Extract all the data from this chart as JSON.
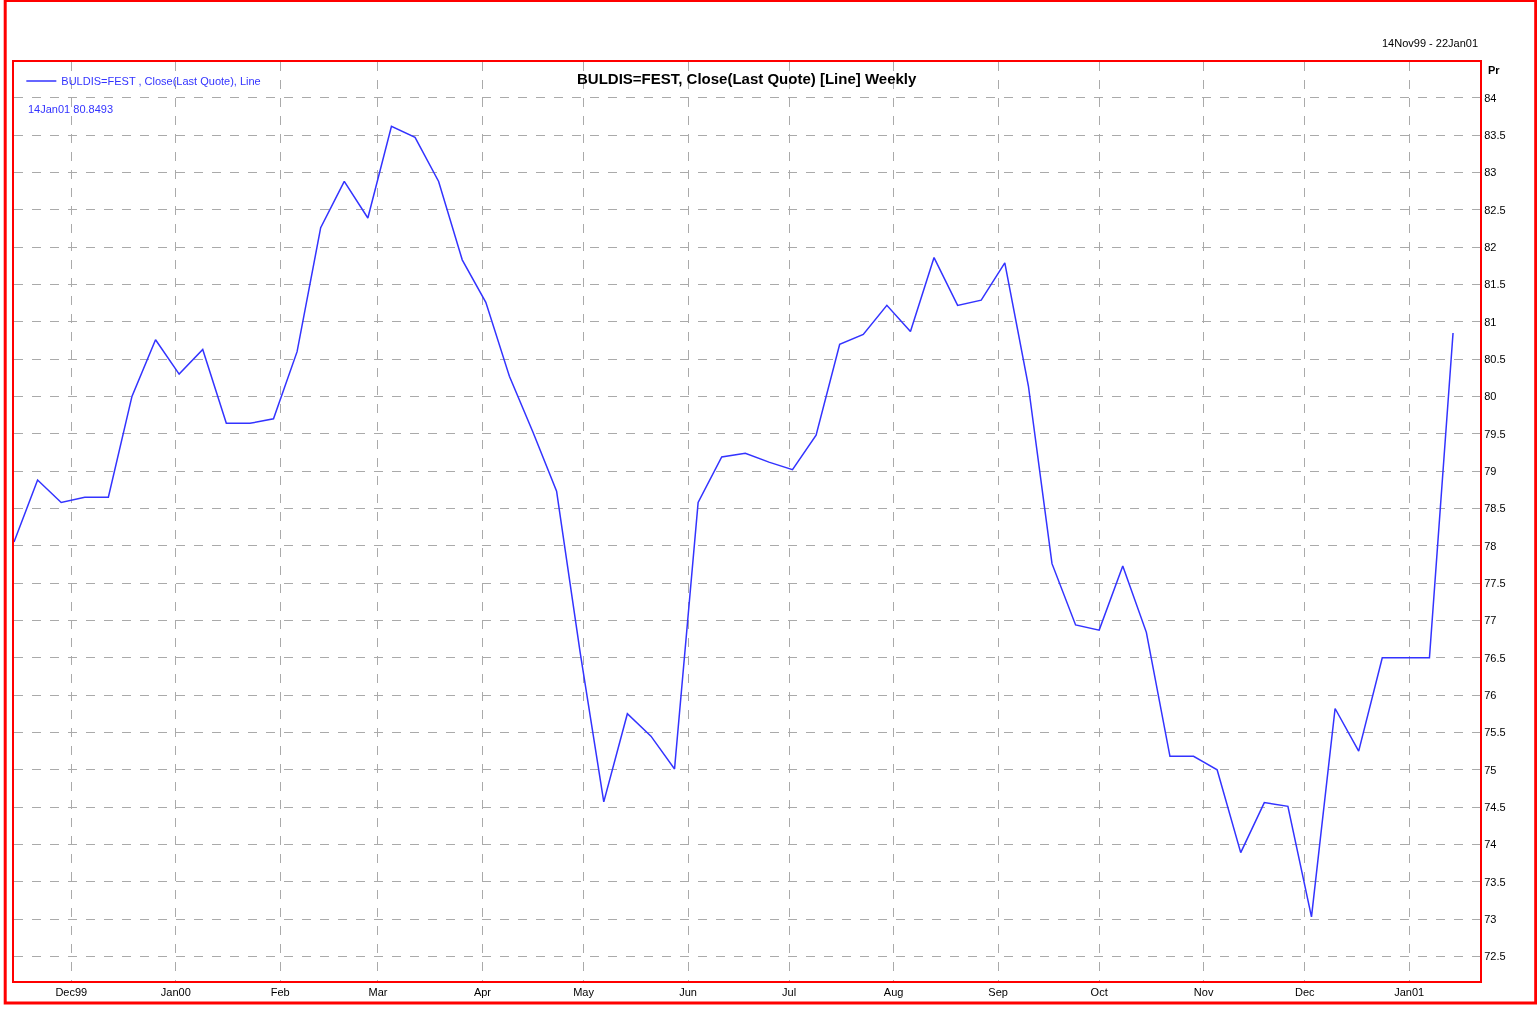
{
  "chart_data": {
    "type": "line",
    "title": "BULDIS=FEST, Close(Last Quote) [Line] Weekly",
    "subtitle": "14Nov99 - 22Jan01",
    "ylabel": "Pr",
    "annotations": [
      "14Jan01 80.8493"
    ],
    "x": [
      "1999-11-14",
      "1999-11-21",
      "1999-11-28",
      "1999-12-05",
      "1999-12-12",
      "1999-12-19",
      "1999-12-26",
      "2000-01-02",
      "2000-01-09",
      "2000-01-16",
      "2000-01-23",
      "2000-01-30",
      "2000-02-06",
      "2000-02-13",
      "2000-02-20",
      "2000-02-27",
      "2000-03-05",
      "2000-03-12",
      "2000-03-19",
      "2000-03-26",
      "2000-04-02",
      "2000-04-09",
      "2000-04-16",
      "2000-04-23",
      "2000-04-30",
      "2000-05-07",
      "2000-05-14",
      "2000-05-21",
      "2000-05-28",
      "2000-06-04",
      "2000-06-11",
      "2000-06-18",
      "2000-06-25",
      "2000-07-02",
      "2000-07-09",
      "2000-07-16",
      "2000-07-23",
      "2000-07-30",
      "2000-08-06",
      "2000-08-13",
      "2000-08-20",
      "2000-08-27",
      "2000-09-03",
      "2000-09-10",
      "2000-09-17",
      "2000-09-24",
      "2000-10-01",
      "2000-10-08",
      "2000-10-15",
      "2000-10-22",
      "2000-10-29",
      "2000-11-05",
      "2000-11-12",
      "2000-11-19",
      "2000-11-26",
      "2000-12-03",
      "2000-12-10",
      "2000-12-17",
      "2000-12-24",
      "2000-12-31",
      "2001-01-07",
      "2001-01-14"
    ],
    "series": [
      {
        "name": "BULDIS=FEST , Close(Last Quote), Line",
        "color": "#3333ff",
        "values": [
          78.05,
          78.88,
          78.58,
          78.65,
          78.65,
          80.0,
          80.76,
          80.3,
          80.63,
          79.64,
          79.64,
          79.7,
          80.6,
          82.26,
          82.88,
          82.39,
          83.62,
          83.47,
          82.88,
          81.83,
          81.26,
          80.27,
          79.52,
          78.73,
          76.57,
          74.57,
          75.75,
          75.45,
          75.01,
          78.58,
          79.19,
          79.24,
          79.12,
          79.02,
          79.48,
          80.7,
          80.83,
          81.22,
          80.87,
          81.86,
          81.22,
          81.29,
          81.79,
          80.14,
          77.76,
          76.94,
          76.87,
          77.73,
          76.84,
          75.18,
          75.18,
          75.0,
          73.89,
          74.56,
          74.51,
          73.03,
          75.82,
          75.25,
          76.5,
          76.5,
          76.5,
          80.8493
        ]
      }
    ],
    "xlim": [
      "1999-11-14",
      "2001-01-22"
    ],
    "xticks": [
      {
        "value": "1999-12-01",
        "label": "Dec99"
      },
      {
        "value": "2000-01-01",
        "label": "Jan00"
      },
      {
        "value": "2000-02-01",
        "label": "Feb"
      },
      {
        "value": "2000-03-01",
        "label": "Mar"
      },
      {
        "value": "2000-04-01",
        "label": "Apr"
      },
      {
        "value": "2000-05-01",
        "label": "May"
      },
      {
        "value": "2000-06-01",
        "label": "Jun"
      },
      {
        "value": "2000-07-01",
        "label": "Jul"
      },
      {
        "value": "2000-08-01",
        "label": "Aug"
      },
      {
        "value": "2000-09-01",
        "label": "Sep"
      },
      {
        "value": "2000-10-01",
        "label": "Oct"
      },
      {
        "value": "2000-11-01",
        "label": "Nov"
      },
      {
        "value": "2000-12-01",
        "label": "Dec"
      },
      {
        "value": "2001-01-01",
        "label": "Jan01"
      }
    ],
    "ylim": [
      72.17,
      84.48
    ],
    "yticks": [
      72.5,
      73,
      73.5,
      74,
      74.5,
      75,
      75.5,
      76,
      76.5,
      77,
      77.5,
      78,
      78.5,
      79,
      79.5,
      80,
      80.5,
      81,
      81.5,
      82,
      82.5,
      83,
      83.5,
      84
    ],
    "grid": true,
    "legend": "top left",
    "line_style": "solid",
    "marker": "none"
  }
}
